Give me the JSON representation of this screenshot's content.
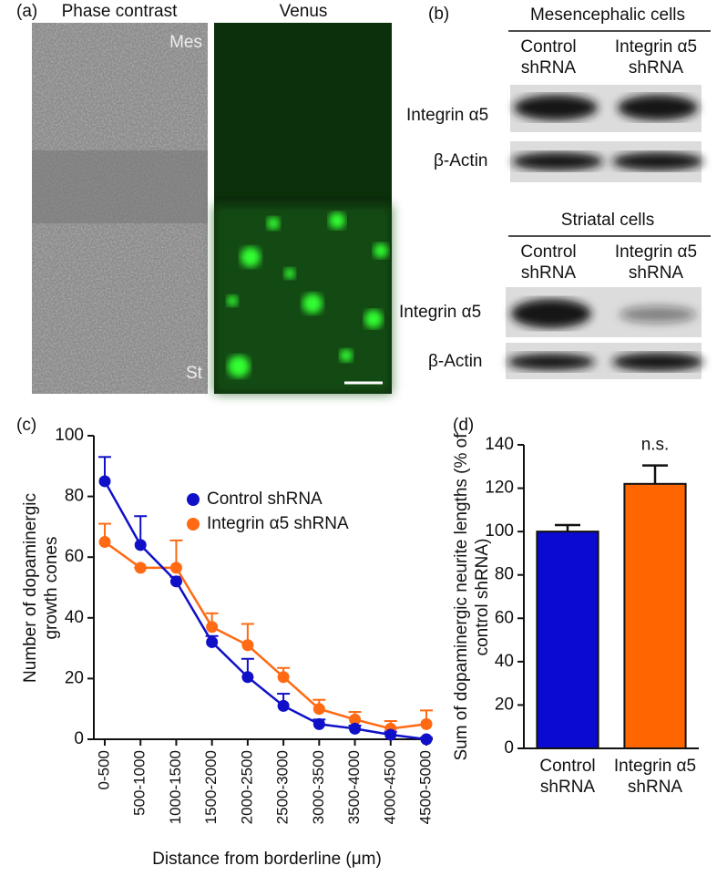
{
  "panels": {
    "a": {
      "label": "(a)",
      "titles": [
        "Phase contrast",
        "Venus"
      ],
      "top_region": "Mes",
      "bottom_region": "St"
    },
    "b": {
      "label": "(b)",
      "groups": [
        {
          "title": "Mesencephalic cells",
          "lanes": [
            "Control shRNA",
            "Integrin α5 shRNA"
          ],
          "rows": [
            "Integrin α5",
            "β-Actin"
          ]
        },
        {
          "title": "Striatal cells",
          "lanes": [
            "Control shRNA",
            "Integrin α5 shRNA"
          ],
          "rows": [
            "Integrin α5",
            "β-Actin"
          ]
        }
      ]
    }
  },
  "chart_data": [
    {
      "type": "line",
      "panel_label": "(c)",
      "categories": [
        "0-500",
        "500-1000",
        "1000-1500",
        "1500-2000",
        "2000-2500",
        "2500-3000",
        "3000-3500",
        "3500-4000",
        "4000-4500",
        "4500-5000"
      ],
      "series": [
        {
          "name": "Control shRNA",
          "color": "#1010c8",
          "values": [
            85,
            64,
            52,
            32,
            20.5,
            11,
            5,
            3.5,
            1.5,
            0
          ],
          "errors": [
            8,
            9.5,
            1.5,
            2,
            6,
            4,
            1.5,
            1,
            1,
            0.5
          ]
        },
        {
          "name": "Integrin α5 shRNA",
          "color": "#ff6a13",
          "values": [
            65,
            56.5,
            56.5,
            37,
            31,
            20.5,
            10,
            6.5,
            3.5,
            5
          ],
          "errors": [
            6,
            0,
            9,
            4.5,
            7,
            3,
            3,
            2.5,
            2.5,
            4.5
          ]
        }
      ],
      "ylim": [
        0,
        100
      ],
      "yticks": [
        0,
        20,
        40,
        60,
        80,
        100
      ],
      "ylabel": "Number of dopaminergic growth cones",
      "xlabel": "Distance from borderline (μm)",
      "legend": "center right"
    },
    {
      "type": "bar",
      "panel_label": "(d)",
      "categories": [
        "Control shRNA",
        "Integrin α5 shRNA"
      ],
      "values": [
        100,
        122
      ],
      "errors": [
        3,
        8.5
      ],
      "colors": [
        "#0a0ad2",
        "#ff6600"
      ],
      "ylim": [
        0,
        140
      ],
      "yticks": [
        0,
        20,
        40,
        60,
        80,
        100,
        120,
        140
      ],
      "ylabel": "Sum of dopaminergic neurite lengths (% of control shRNA)",
      "annotation": "n.s."
    }
  ]
}
